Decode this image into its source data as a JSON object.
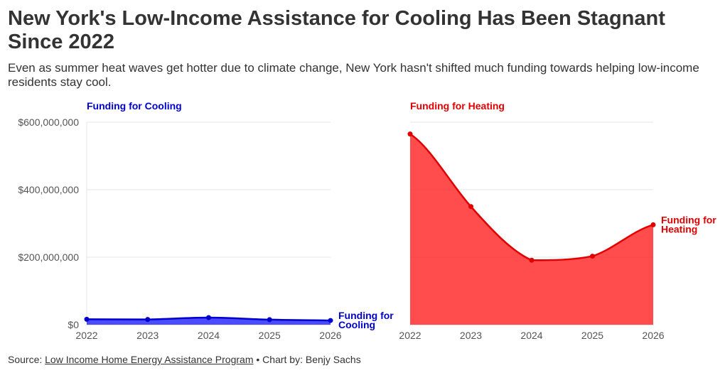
{
  "header": {
    "title": "New York's Low-Income Assistance for Cooling Has Been Stagnant Since 2022",
    "subtitle": "Even as summer heat waves get hotter due to climate change, New York hasn't shifted much funding towards helping low-income residents stay cool."
  },
  "footer": {
    "source_prefix": "Source:",
    "source_link": "Low Income Home Energy Assistance Program",
    "credit": "• Chart by: Benjy Sachs"
  },
  "chart_data": {
    "type": "area",
    "y_tick_labels": [
      "$0",
      "$200,000,000",
      "$400,000,000",
      "$600,000,000"
    ],
    "y_ticks": [
      0,
      200000000,
      400000000,
      600000000
    ],
    "ylim": [
      0,
      600000000
    ],
    "x": [
      "2022",
      "2023",
      "2024",
      "2025",
      "2026"
    ],
    "grid": true,
    "panels": [
      {
        "title": "Funding for Cooling",
        "end_label": [
          "Funding for",
          "Cooling"
        ],
        "color": "#0000cc",
        "fill_color": "#3333ff",
        "values": [
          16000000,
          15500000,
          21000000,
          15000000,
          12500000
        ]
      },
      {
        "title": "Funding for Heating",
        "end_label": [
          "Funding for",
          "Heating"
        ],
        "color": "#e00000",
        "fill_color": "#ff3333",
        "values": [
          565000000,
          350000000,
          191000000,
          203000000,
          296000000
        ]
      }
    ]
  }
}
